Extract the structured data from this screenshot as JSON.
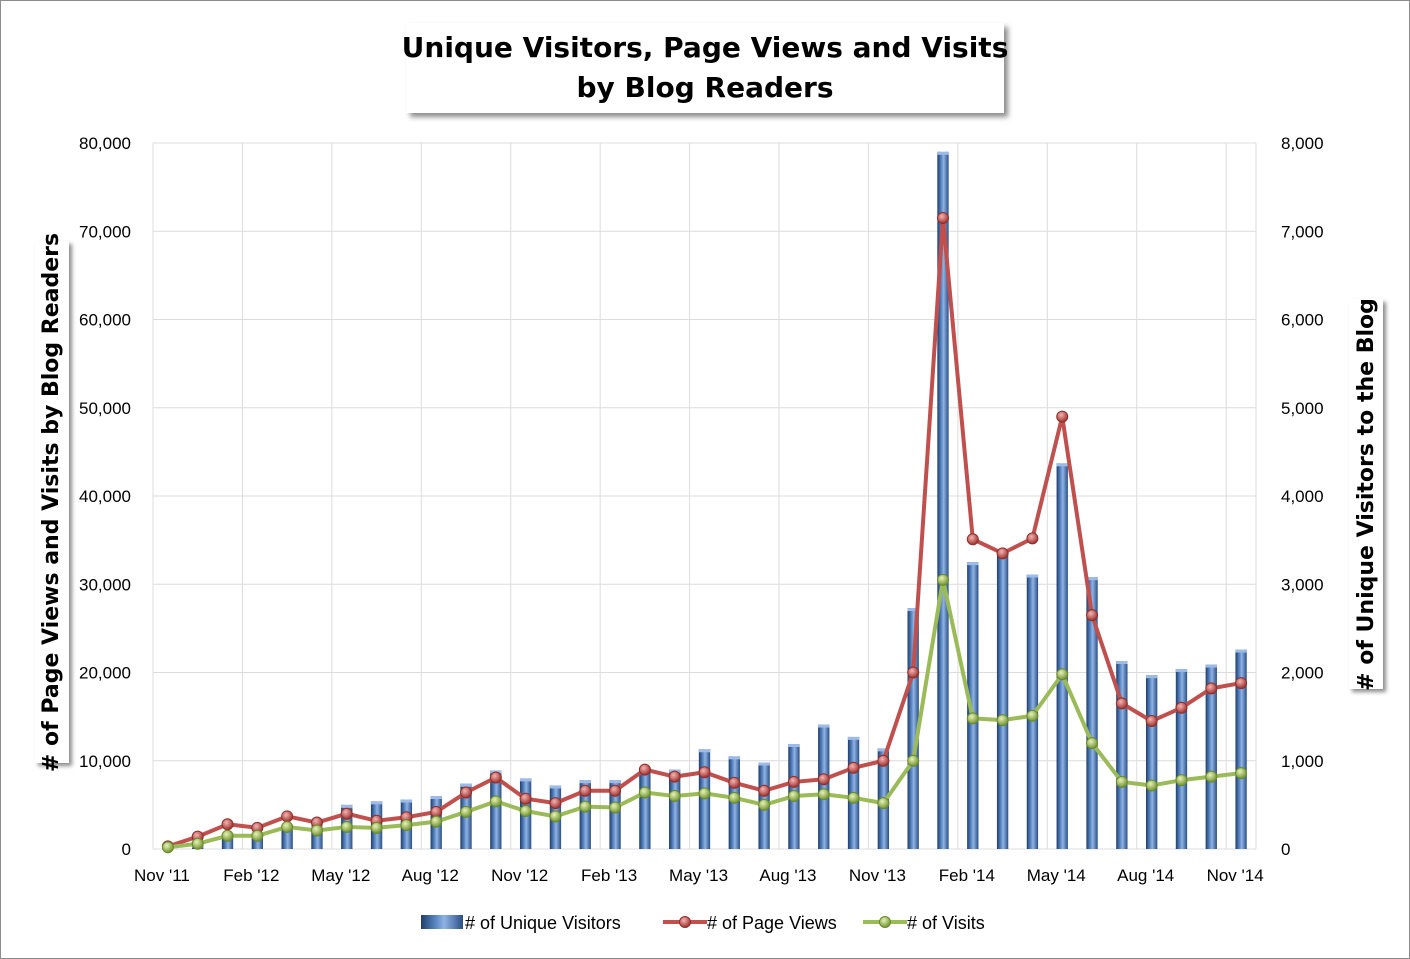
{
  "chart_data": {
    "type": "bar",
    "title": [
      "Unique Visitors, Page Views and Visits",
      "by Blog Readers"
    ],
    "ylabel_left": "# of Page Views and Visits by Blog Readers",
    "ylabel_right": "# of Unique Visitors to the Blog",
    "ylim_left": [
      0,
      80000
    ],
    "ylim_right": [
      0,
      8000
    ],
    "yticks_left": [
      "0",
      "10,000",
      "20,000",
      "30,000",
      "40,000",
      "50,000",
      "60,000",
      "70,000",
      "80,000"
    ],
    "yticks_right": [
      "0",
      "1,000",
      "2,000",
      "3,000",
      "4,000",
      "5,000",
      "6,000",
      "7,000",
      "8,000"
    ],
    "grid": true,
    "legend_position": "bottom",
    "x_tick_labels": [
      "Nov '11",
      "Feb '12",
      "May '12",
      "Aug '12",
      "Nov '12",
      "Feb '13",
      "May '13",
      "Aug '13",
      "Nov '13",
      "Feb '14",
      "May '14",
      "Aug '14",
      "Nov '14"
    ],
    "categories": [
      "Nov '11",
      "Dec '11",
      "Jan '12",
      "Feb '12",
      "Mar '12",
      "Apr '12",
      "May '12",
      "Jun '12",
      "Jul '12",
      "Aug '12",
      "Sep '12",
      "Oct '12",
      "Nov '12",
      "Dec '12",
      "Jan '13",
      "Feb '13",
      "Mar '13",
      "Apr '13",
      "May '13",
      "Jun '13",
      "Jul '13",
      "Aug '13",
      "Sep '13",
      "Oct '13",
      "Nov '13",
      "Dec '13",
      "Jan '14",
      "Feb '14",
      "Mar '14",
      "Apr '14",
      "May '14",
      "Jun '14",
      "Jul '14",
      "Aug '14",
      "Sep '14",
      "Oct '14",
      "Nov '14"
    ],
    "series": [
      {
        "name": "# of Unique Visitors",
        "type": "bar",
        "axis": "right",
        "color": "#4f81bd",
        "values": [
          30,
          50,
          150,
          150,
          270,
          270,
          500,
          540,
          560,
          600,
          740,
          890,
          800,
          720,
          780,
          780,
          900,
          900,
          1130,
          1050,
          980,
          1190,
          1410,
          1270,
          1140,
          2730,
          7900,
          3250,
          3380,
          3110,
          4370,
          3080,
          2130,
          1970,
          2040,
          2090,
          2260
        ]
      },
      {
        "name": "# of Page Views",
        "type": "line",
        "axis": "left",
        "color": "#c0504d",
        "values": [
          300,
          1400,
          2800,
          2400,
          3700,
          3000,
          4000,
          3200,
          3600,
          4200,
          6400,
          8100,
          5700,
          5200,
          6600,
          6600,
          9000,
          8200,
          8700,
          7500,
          6600,
          7600,
          7900,
          9200,
          10000,
          20000,
          71500,
          35100,
          33500,
          35200,
          49000,
          26500,
          16500,
          14500,
          16000,
          18200,
          18800
        ]
      },
      {
        "name": "# of Visits",
        "type": "line",
        "axis": "left",
        "color": "#9bbb59",
        "values": [
          200,
          600,
          1500,
          1500,
          2500,
          2100,
          2500,
          2400,
          2700,
          3100,
          4200,
          5400,
          4300,
          3700,
          4800,
          4700,
          6400,
          6000,
          6300,
          5800,
          5000,
          6000,
          6200,
          5800,
          5200,
          10000,
          30500,
          14800,
          14600,
          15100,
          19800,
          12000,
          7600,
          7200,
          7800,
          8200,
          8600
        ]
      }
    ]
  }
}
